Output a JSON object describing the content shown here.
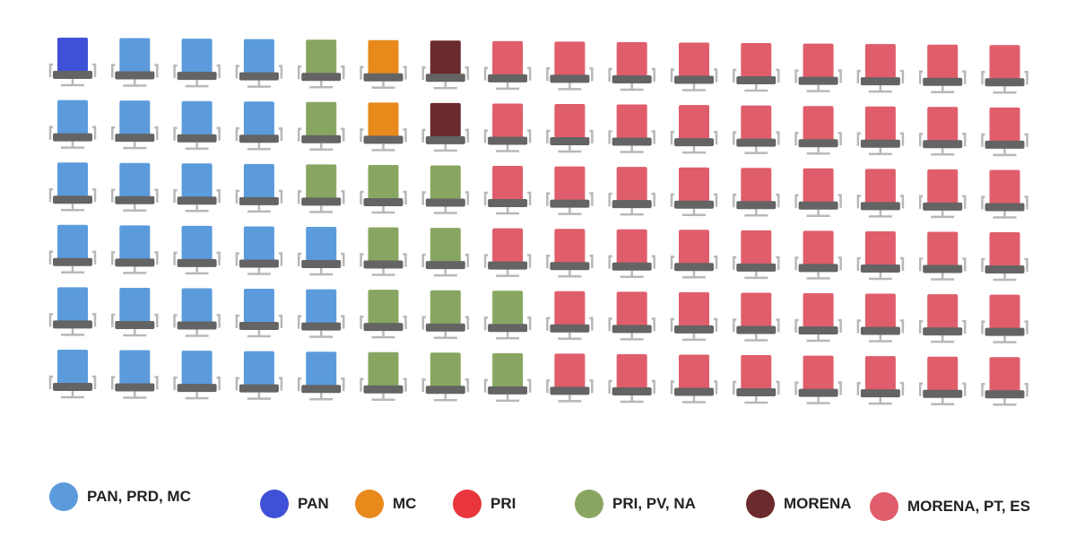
{
  "chart_data": {
    "type": "waffle",
    "title": "",
    "units": "seats",
    "rows": 6,
    "columns": 16,
    "categories": [
      {
        "key": "pan_prd_mc",
        "name": "PAN, PRD, MC",
        "color": "#5b9bdc"
      },
      {
        "key": "pan",
        "name": "PAN",
        "color": "#3f51d6"
      },
      {
        "key": "mc",
        "name": "MC",
        "color": "#e8891c"
      },
      {
        "key": "pri",
        "name": "PRI",
        "color": "#e8363c"
      },
      {
        "key": "pri_pv_na",
        "name": "PRI, PV, NA",
        "color": "#88a662"
      },
      {
        "key": "morena",
        "name": "MORENA",
        "color": "#6b2a2d"
      },
      {
        "key": "morena_pt_es",
        "name": "MORENA, PT, ES",
        "color": "#e05d6b"
      }
    ],
    "grid": [
      [
        "pan",
        "pan_prd_mc",
        "pan_prd_mc",
        "pan_prd_mc",
        "pri_pv_na",
        "mc",
        "morena",
        "morena_pt_es",
        "morena_pt_es",
        "morena_pt_es",
        "morena_pt_es",
        "morena_pt_es",
        "morena_pt_es",
        "morena_pt_es",
        "morena_pt_es",
        "morena_pt_es"
      ],
      [
        "pan_prd_mc",
        "pan_prd_mc",
        "pan_prd_mc",
        "pan_prd_mc",
        "pri_pv_na",
        "mc",
        "morena",
        "morena_pt_es",
        "morena_pt_es",
        "morena_pt_es",
        "morena_pt_es",
        "morena_pt_es",
        "morena_pt_es",
        "morena_pt_es",
        "morena_pt_es",
        "morena_pt_es"
      ],
      [
        "pan_prd_mc",
        "pan_prd_mc",
        "pan_prd_mc",
        "pan_prd_mc",
        "pri_pv_na",
        "pri_pv_na",
        "pri_pv_na",
        "morena_pt_es",
        "morena_pt_es",
        "morena_pt_es",
        "morena_pt_es",
        "morena_pt_es",
        "morena_pt_es",
        "morena_pt_es",
        "morena_pt_es",
        "morena_pt_es"
      ],
      [
        "pan_prd_mc",
        "pan_prd_mc",
        "pan_prd_mc",
        "pan_prd_mc",
        "pan_prd_mc",
        "pri_pv_na",
        "pri_pv_na",
        "morena_pt_es",
        "morena_pt_es",
        "morena_pt_es",
        "morena_pt_es",
        "morena_pt_es",
        "morena_pt_es",
        "morena_pt_es",
        "morena_pt_es",
        "morena_pt_es"
      ],
      [
        "pan_prd_mc",
        "pan_prd_mc",
        "pan_prd_mc",
        "pan_prd_mc",
        "pan_prd_mc",
        "pri_pv_na",
        "pri_pv_na",
        "pri_pv_na",
        "morena_pt_es",
        "morena_pt_es",
        "morena_pt_es",
        "morena_pt_es",
        "morena_pt_es",
        "morena_pt_es",
        "morena_pt_es",
        "morena_pt_es"
      ],
      [
        "pan_prd_mc",
        "pan_prd_mc",
        "pan_prd_mc",
        "pan_prd_mc",
        "pan_prd_mc",
        "pri_pv_na",
        "pri_pv_na",
        "pri_pv_na",
        "morena_pt_es",
        "morena_pt_es",
        "morena_pt_es",
        "morena_pt_es",
        "morena_pt_es",
        "morena_pt_es",
        "morena_pt_es",
        "morena_pt_es"
      ]
    ],
    "legend_position": "bottom",
    "seat_frame_color": "#b8b8b8",
    "seat_base_color": "#646464"
  }
}
